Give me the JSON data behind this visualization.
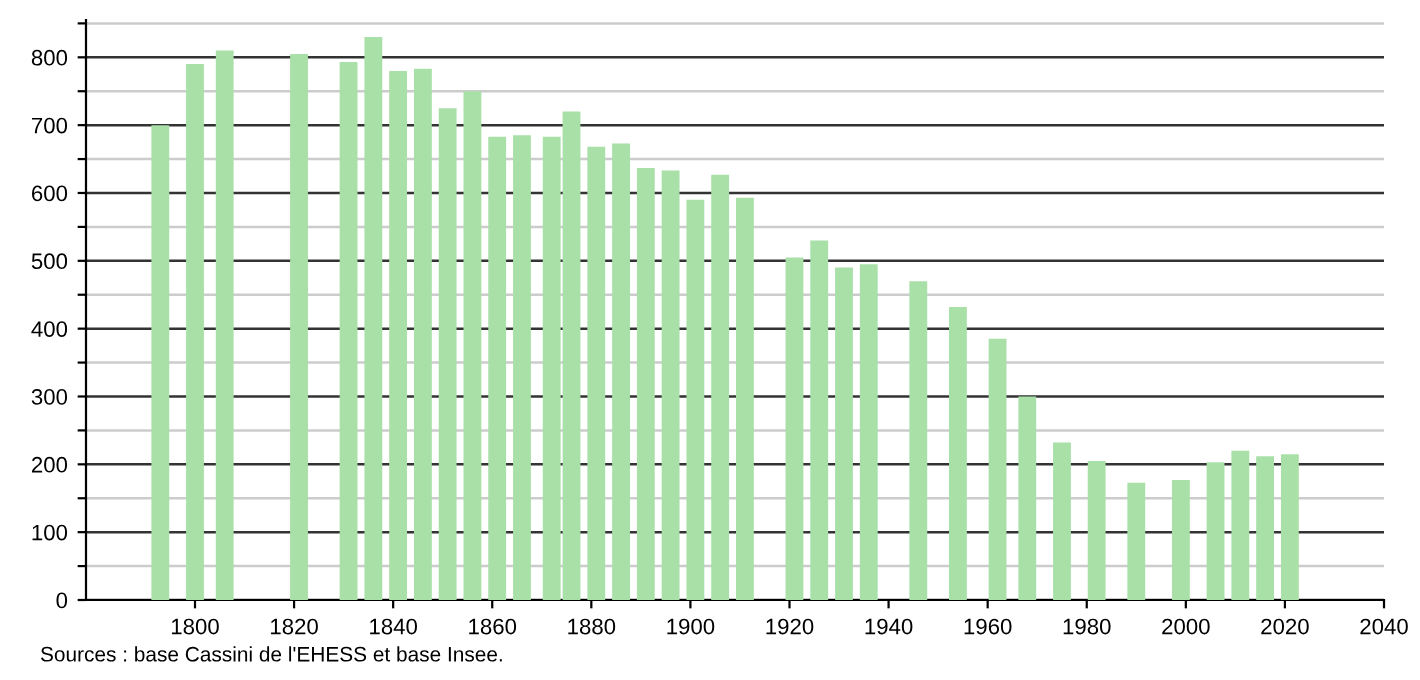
{
  "chart_data": {
    "type": "bar",
    "x": [
      1793,
      1800,
      1806,
      1821,
      1831,
      1836,
      1841,
      1846,
      1851,
      1856,
      1861,
      1866,
      1872,
      1876,
      1881,
      1886,
      1891,
      1896,
      1901,
      1906,
      1911,
      1921,
      1926,
      1931,
      1936,
      1946,
      1954,
      1962,
      1968,
      1975,
      1982,
      1990,
      1999,
      2006,
      2011,
      2016,
      2021
    ],
    "values": [
      700,
      790,
      810,
      805,
      793,
      830,
      780,
      783,
      725,
      750,
      683,
      685,
      683,
      720,
      668,
      673,
      637,
      633,
      590,
      627,
      593,
      505,
      530,
      490,
      495,
      470,
      432,
      385,
      300,
      232,
      205,
      173,
      177,
      203,
      220,
      212,
      215
    ],
    "color": "#a8e0a8",
    "xlim": [
      1778,
      2040
    ],
    "xticks": [
      1800,
      1820,
      1840,
      1860,
      1880,
      1900,
      1920,
      1940,
      1960,
      1980,
      2000,
      2020,
      2040
    ],
    "ylim": [
      0,
      855
    ],
    "yticks": [
      0,
      {
        "value": 50,
        "label": null
      },
      100,
      {
        "value": 150,
        "label": null
      },
      200,
      {
        "value": 250,
        "label": null
      },
      300,
      {
        "value": 350,
        "label": null
      },
      400,
      {
        "value": 450,
        "label": null
      },
      500,
      {
        "value": 550,
        "label": null
      },
      600,
      {
        "value": 650,
        "label": null
      },
      700,
      {
        "value": 750,
        "label": null
      },
      800,
      {
        "value": 850,
        "label": null
      }
    ],
    "grid": "y",
    "annotations": [
      "Sources : base Cassini de l'EHESS et base Insee."
    ]
  }
}
